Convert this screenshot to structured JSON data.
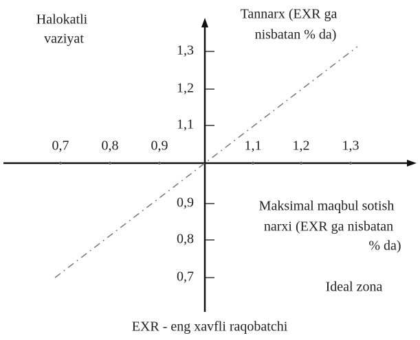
{
  "top_left": [
    "Halokatli",
    "vaziyat"
  ],
  "y_axis_label": [
    "Tannarx (EXR ga",
    "nisbatan % da)"
  ],
  "x_ticks": [
    "0,7",
    "0,8",
    "0,9",
    "1,1",
    "1,2",
    "1,3"
  ],
  "y_ticks": [
    "1,3",
    "1,2",
    "1,1",
    "0,9",
    "0,8",
    "0,7"
  ],
  "x_axis_label": [
    "Maksimal maqbul sotish",
    "narxi (EXR ga nisbatan",
    "% da)"
  ],
  "ideal_zone": "Ideal zona",
  "footer": "EXR - eng xavfli raqobatchi"
}
